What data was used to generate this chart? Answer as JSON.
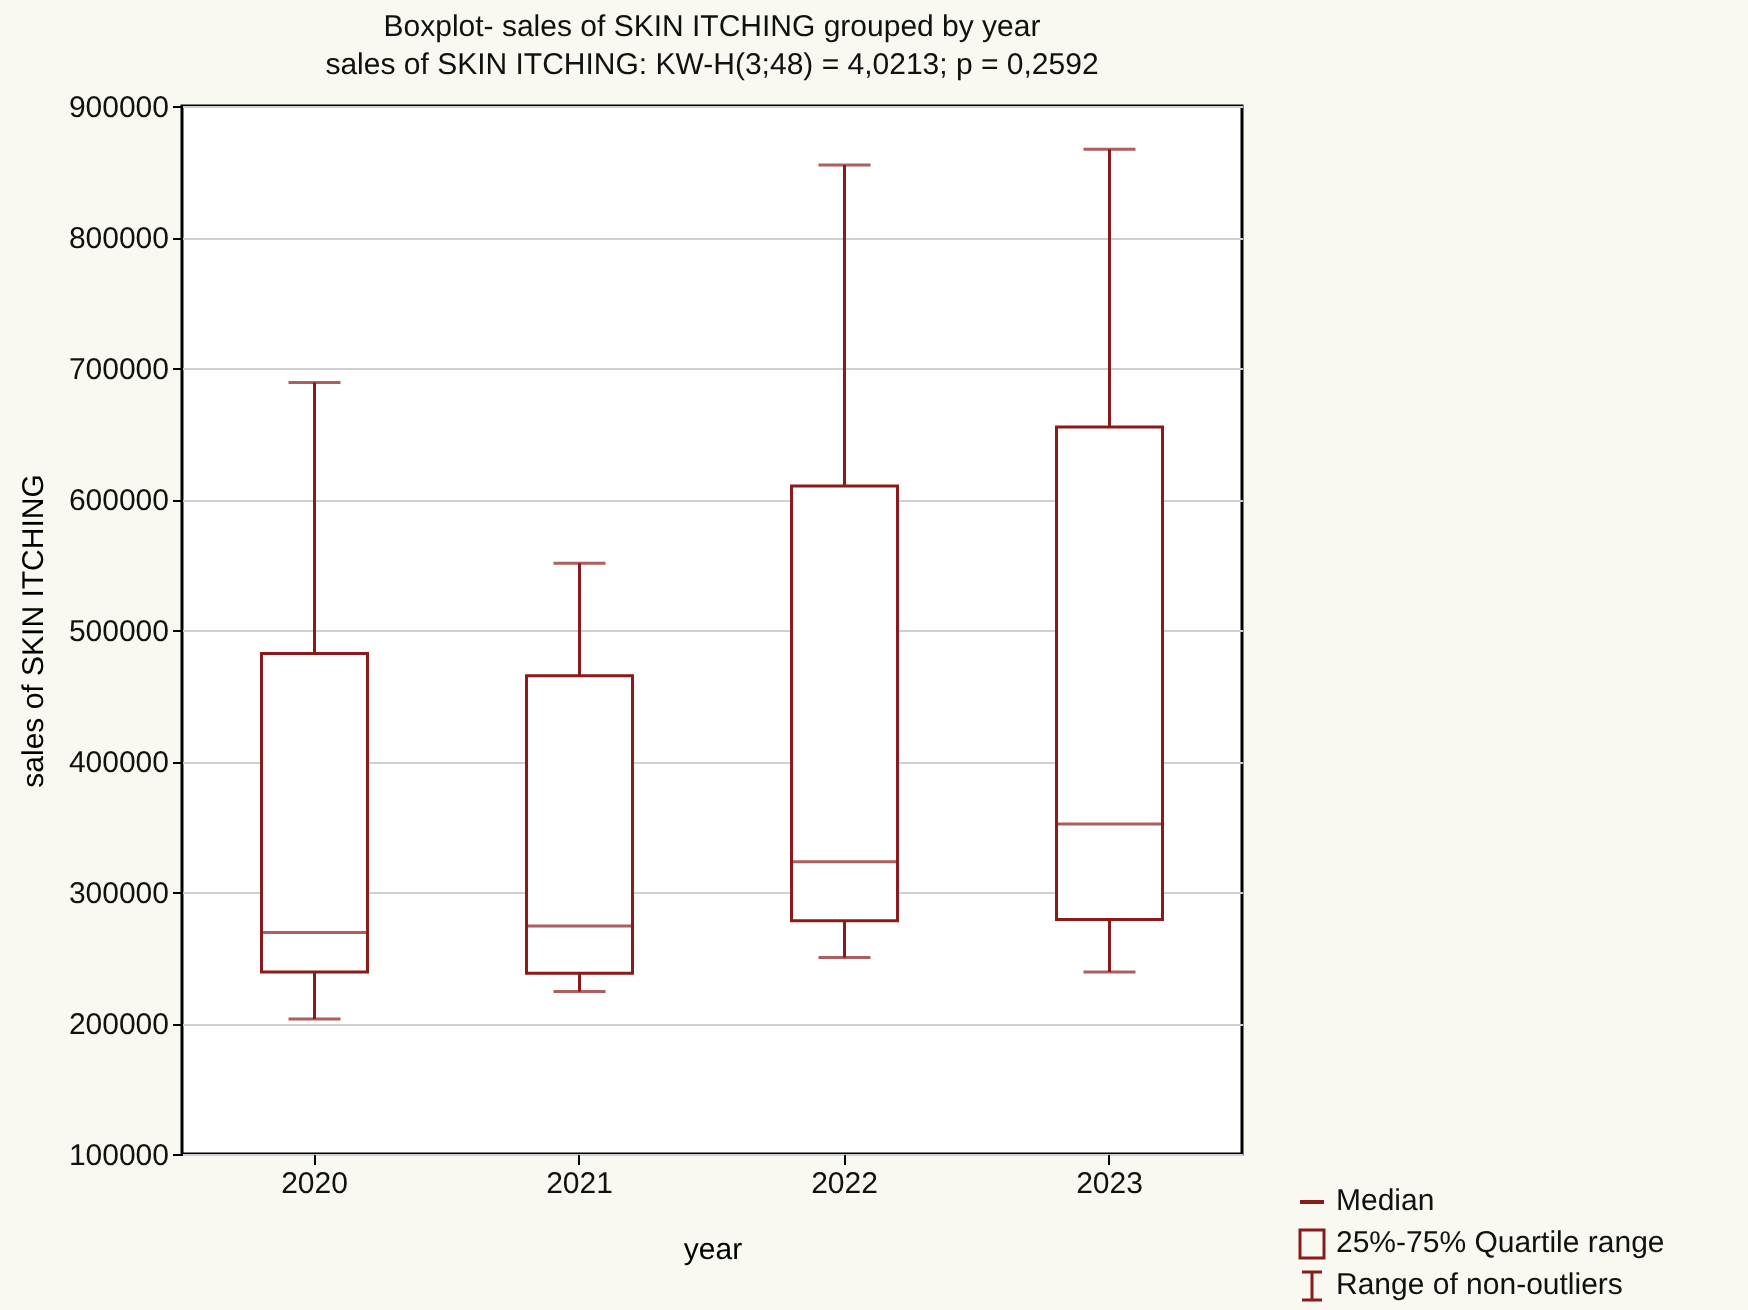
{
  "chart_data": {
    "type": "box",
    "title": "Boxplot- sales of SKIN ITCHING grouped by year",
    "subtitle": "sales of SKIN ITCHING:  KW-H(3;48) = 4,0213; p = 0,2592",
    "xlabel": "year",
    "ylabel": "sales of SKIN ITCHING",
    "categories": [
      "2020",
      "2021",
      "2022",
      "2023"
    ],
    "boxes": [
      {
        "low": 203000,
        "q1": 239000,
        "median": 269000,
        "q3": 482000,
        "high": 689000
      },
      {
        "low": 224000,
        "q1": 238000,
        "median": 274000,
        "q3": 465000,
        "high": 551000
      },
      {
        "low": 250000,
        "q1": 278000,
        "median": 323000,
        "q3": 610000,
        "high": 855000
      },
      {
        "low": 239000,
        "q1": 279000,
        "median": 352000,
        "q3": 655000,
        "high": 867000
      }
    ],
    "color": "#8b1a1a",
    "ylim": [
      100000,
      900000
    ],
    "yticks": [
      100000,
      200000,
      300000,
      400000,
      500000,
      600000,
      700000,
      800000,
      900000
    ],
    "grid": "y",
    "annotations": [
      "Median",
      "25%-75% Quartile range",
      "Range of non-outliers"
    ]
  }
}
